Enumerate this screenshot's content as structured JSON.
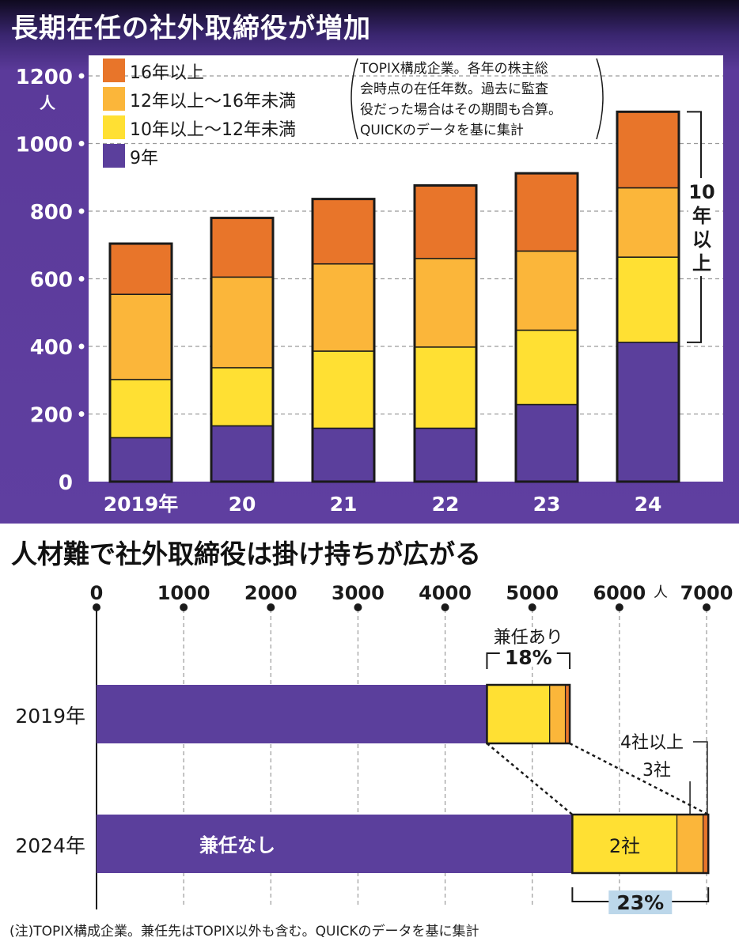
{
  "titles": {
    "top": "長期在任の社外取締役が増加",
    "bottom": "人材難で社外取締役は掛け持ちが広がる"
  },
  "footnote": "(注)TOPIX構成企業。兼任先はTOPIX以外も含む。QUICKのデータを基に集計",
  "chart_data": [
    {
      "type": "bar",
      "stacked": true,
      "categories": [
        "2019年",
        "20",
        "21",
        "22",
        "23",
        "24"
      ],
      "series": [
        {
          "name": "9年",
          "color": "#5b3f9c",
          "values": [
            130,
            165,
            158,
            158,
            228,
            412
          ]
        },
        {
          "name": "10年以上～12年未満",
          "color": "#ffe033",
          "values": [
            172,
            172,
            228,
            240,
            220,
            252
          ]
        },
        {
          "name": "12年以上～16年未満",
          "color": "#fbb63a",
          "values": [
            252,
            268,
            258,
            262,
            234,
            205
          ]
        },
        {
          "name": "16年以上",
          "color": "#e8752a",
          "values": [
            150,
            175,
            192,
            216,
            230,
            225
          ]
        }
      ],
      "ylim": [
        0,
        1200
      ],
      "yticks": [
        0,
        200,
        400,
        600,
        800,
        1000,
        1200
      ],
      "yunit": "人",
      "grid": true,
      "legend_position": "top-left",
      "note": "TOPIX構成企業。各年の株主総会時点の在任年数。過去に監査役だった場合はその期間も合算。QUICKのデータを基に集計",
      "bracket_label": "10年以上"
    },
    {
      "type": "bar",
      "orientation": "horizontal",
      "stacked": true,
      "categories": [
        "2019年",
        "2024年"
      ],
      "series": [
        {
          "name": "兼任なし",
          "color": "#5b3f9c",
          "values": [
            4480,
            5460
          ]
        },
        {
          "name": "2社",
          "color": "#ffe033",
          "values": [
            720,
            1200
          ]
        },
        {
          "name": "3社",
          "color": "#fbb63a",
          "values": [
            180,
            300
          ]
        },
        {
          "name": "4社以上",
          "color": "#e8752a",
          "values": [
            50,
            60
          ]
        }
      ],
      "xlim": [
        0,
        7000
      ],
      "xticks": [
        0,
        1000,
        2000,
        3000,
        4000,
        5000,
        6000,
        7000
      ],
      "xunit": "人",
      "grid": true,
      "annotations": {
        "concurrent_label": "兼任あり",
        "pct_2019": "18%",
        "pct_2024": "23%",
        "label_2sha": "2社",
        "label_3sha": "3社",
        "label_4sha": "4社以上",
        "label_none": "兼任なし"
      }
    }
  ]
}
